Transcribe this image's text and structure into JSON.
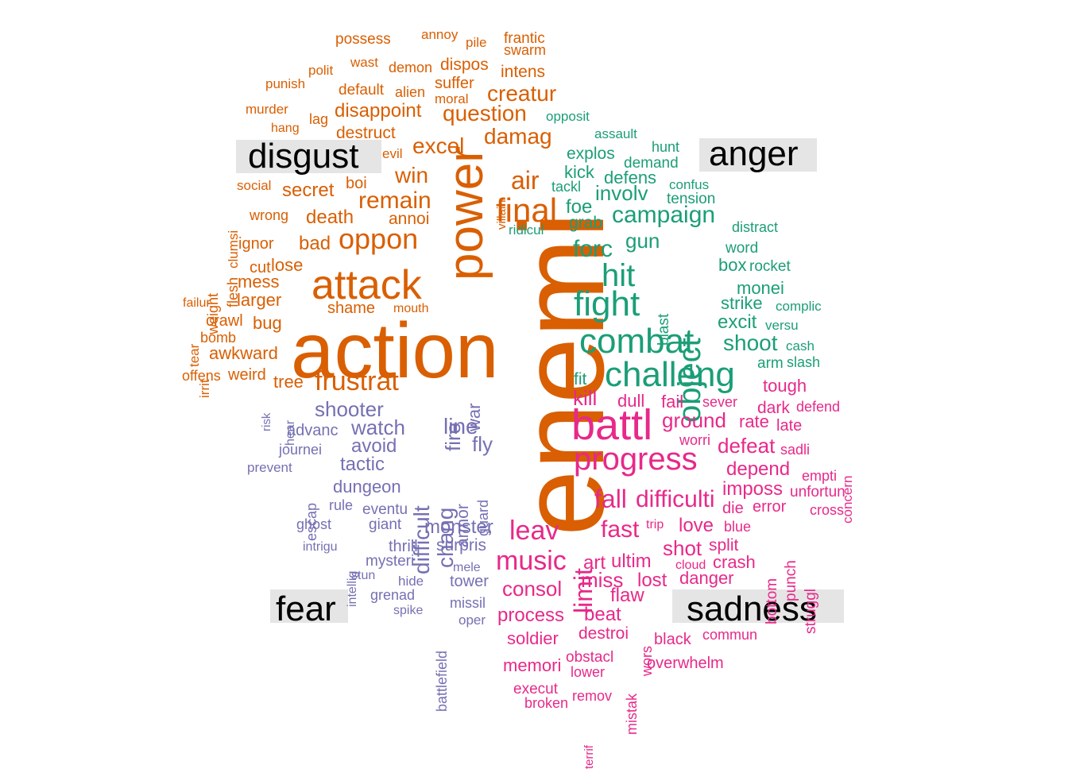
{
  "colors": {
    "disgust": "#d95f02",
    "anger": "#1b9e77",
    "fear": "#7570b3",
    "sadness": "#e7298a"
  },
  "categories": {
    "disgust": "disgust",
    "anger": "anger",
    "fear": "fear",
    "sadness": "sadness"
  },
  "words": [
    {
      "t": "enemi",
      "c": "disgust"
    },
    {
      "t": "action",
      "c": "disgust"
    },
    {
      "t": "power",
      "c": "disgust"
    },
    {
      "t": "attack",
      "c": "disgust"
    },
    {
      "t": "oppon",
      "c": "disgust"
    },
    {
      "t": "final",
      "c": "disgust"
    },
    {
      "t": "frustrat",
      "c": "disgust"
    },
    {
      "t": "remain",
      "c": "disgust"
    },
    {
      "t": "air",
      "c": "disgust"
    },
    {
      "t": "win",
      "c": "disgust"
    },
    {
      "t": "excel",
      "c": "disgust"
    },
    {
      "t": "damag",
      "c": "disgust"
    },
    {
      "t": "creatur",
      "c": "disgust"
    },
    {
      "t": "question",
      "c": "disgust"
    },
    {
      "t": "disappoint",
      "c": "disgust"
    },
    {
      "t": "secret",
      "c": "disgust"
    },
    {
      "t": "death",
      "c": "disgust"
    },
    {
      "t": "bad",
      "c": "disgust"
    },
    {
      "t": "lose",
      "c": "disgust"
    },
    {
      "t": "cut",
      "c": "disgust"
    },
    {
      "t": "mess",
      "c": "disgust"
    },
    {
      "t": "larger",
      "c": "disgust"
    },
    {
      "t": "bug",
      "c": "disgust"
    },
    {
      "t": "shame",
      "c": "disgust"
    },
    {
      "t": "mouth",
      "c": "disgust"
    },
    {
      "t": "crawl",
      "c": "disgust"
    },
    {
      "t": "awkward",
      "c": "disgust"
    },
    {
      "t": "weird",
      "c": "disgust"
    },
    {
      "t": "tree",
      "c": "disgust"
    },
    {
      "t": "offens",
      "c": "disgust"
    },
    {
      "t": "bomb",
      "c": "disgust"
    },
    {
      "t": "failur",
      "c": "disgust"
    },
    {
      "t": "ignor",
      "c": "disgust"
    },
    {
      "t": "wrong",
      "c": "disgust"
    },
    {
      "t": "social",
      "c": "disgust"
    },
    {
      "t": "annoi",
      "c": "disgust"
    },
    {
      "t": "boi",
      "c": "disgust"
    },
    {
      "t": "evil",
      "c": "disgust"
    },
    {
      "t": "destruct",
      "c": "disgust"
    },
    {
      "t": "hang",
      "c": "disgust"
    },
    {
      "t": "murder",
      "c": "disgust"
    },
    {
      "t": "lag",
      "c": "disgust"
    },
    {
      "t": "punish",
      "c": "disgust"
    },
    {
      "t": "polit",
      "c": "disgust"
    },
    {
      "t": "default",
      "c": "disgust"
    },
    {
      "t": "wast",
      "c": "disgust"
    },
    {
      "t": "alien",
      "c": "disgust"
    },
    {
      "t": "moral",
      "c": "disgust"
    },
    {
      "t": "suffer",
      "c": "disgust"
    },
    {
      "t": "demon",
      "c": "disgust"
    },
    {
      "t": "dispos",
      "c": "disgust"
    },
    {
      "t": "intens",
      "c": "disgust"
    },
    {
      "t": "possess",
      "c": "disgust"
    },
    {
      "t": "annoy",
      "c": "disgust"
    },
    {
      "t": "pile",
      "c": "disgust"
    },
    {
      "t": "frantic",
      "c": "disgust"
    },
    {
      "t": "swarm",
      "c": "disgust"
    },
    {
      "t": "weight",
      "c": "disgust"
    },
    {
      "t": "flesh",
      "c": "disgust"
    },
    {
      "t": "clumsi",
      "c": "disgust"
    },
    {
      "t": "tear",
      "c": "disgust"
    },
    {
      "t": "irrit",
      "c": "disgust"
    },
    {
      "t": "villain",
      "c": "disgust"
    },
    {
      "t": "fight",
      "c": "anger"
    },
    {
      "t": "combat",
      "c": "anger"
    },
    {
      "t": "challeng",
      "c": "anger"
    },
    {
      "t": "hit",
      "c": "anger"
    },
    {
      "t": "forc",
      "c": "anger"
    },
    {
      "t": "campaign",
      "c": "anger"
    },
    {
      "t": "involv",
      "c": "anger"
    },
    {
      "t": "gun",
      "c": "anger"
    },
    {
      "t": "object",
      "c": "anger"
    },
    {
      "t": "shoot",
      "c": "anger"
    },
    {
      "t": "excit",
      "c": "anger"
    },
    {
      "t": "strike",
      "c": "anger"
    },
    {
      "t": "monei",
      "c": "anger"
    },
    {
      "t": "box",
      "c": "anger"
    },
    {
      "t": "rocket",
      "c": "anger"
    },
    {
      "t": "word",
      "c": "anger"
    },
    {
      "t": "distract",
      "c": "anger"
    },
    {
      "t": "tension",
      "c": "anger"
    },
    {
      "t": "confus",
      "c": "anger"
    },
    {
      "t": "demand",
      "c": "anger"
    },
    {
      "t": "hunt",
      "c": "anger"
    },
    {
      "t": "defens",
      "c": "anger"
    },
    {
      "t": "kick",
      "c": "anger"
    },
    {
      "t": "tackl",
      "c": "anger"
    },
    {
      "t": "explos",
      "c": "anger"
    },
    {
      "t": "assault",
      "c": "anger"
    },
    {
      "t": "opposit",
      "c": "anger"
    },
    {
      "t": "foe",
      "c": "anger"
    },
    {
      "t": "grab",
      "c": "anger"
    },
    {
      "t": "ridicul",
      "c": "anger"
    },
    {
      "t": "complic",
      "c": "anger"
    },
    {
      "t": "versu",
      "c": "anger"
    },
    {
      "t": "cash",
      "c": "anger"
    },
    {
      "t": "arm",
      "c": "anger"
    },
    {
      "t": "slash",
      "c": "anger"
    },
    {
      "t": "fit",
      "c": "anger"
    },
    {
      "t": "blast",
      "c": "anger"
    },
    {
      "t": "battl",
      "c": "sadness"
    },
    {
      "t": "progress",
      "c": "sadness"
    },
    {
      "t": "kill",
      "c": "sadness"
    },
    {
      "t": "limit",
      "c": "sadness"
    },
    {
      "t": "fall",
      "c": "sadness"
    },
    {
      "t": "difficulti",
      "c": "sadness"
    },
    {
      "t": "fast",
      "c": "sadness"
    },
    {
      "t": "leav",
      "c": "sadness"
    },
    {
      "t": "music",
      "c": "sadness"
    },
    {
      "t": "consol",
      "c": "sadness"
    },
    {
      "t": "process",
      "c": "sadness"
    },
    {
      "t": "soldier",
      "c": "sadness"
    },
    {
      "t": "memori",
      "c": "sadness"
    },
    {
      "t": "ground",
      "c": "sadness"
    },
    {
      "t": "defeat",
      "c": "sadness"
    },
    {
      "t": "depend",
      "c": "sadness"
    },
    {
      "t": "imposs",
      "c": "sadness"
    },
    {
      "t": "die",
      "c": "sadness"
    },
    {
      "t": "error",
      "c": "sadness"
    },
    {
      "t": "love",
      "c": "sadness"
    },
    {
      "t": "shot",
      "c": "sadness"
    },
    {
      "t": "split",
      "c": "sadness"
    },
    {
      "t": "crash",
      "c": "sadness"
    },
    {
      "t": "danger",
      "c": "sadness"
    },
    {
      "t": "lost",
      "c": "sadness"
    },
    {
      "t": "miss",
      "c": "sadness"
    },
    {
      "t": "ultim",
      "c": "sadness"
    },
    {
      "t": "art",
      "c": "sadness"
    },
    {
      "t": "flaw",
      "c": "sadness"
    },
    {
      "t": "beat",
      "c": "sadness"
    },
    {
      "t": "destroi",
      "c": "sadness"
    },
    {
      "t": "black",
      "c": "sadness"
    },
    {
      "t": "commun",
      "c": "sadness"
    },
    {
      "t": "overwhelm",
      "c": "sadness"
    },
    {
      "t": "obstacl",
      "c": "sadness"
    },
    {
      "t": "lower",
      "c": "sadness"
    },
    {
      "t": "execut",
      "c": "sadness"
    },
    {
      "t": "broken",
      "c": "sadness"
    },
    {
      "t": "remov",
      "c": "sadness"
    },
    {
      "t": "dull",
      "c": "sadness"
    },
    {
      "t": "fail",
      "c": "sadness"
    },
    {
      "t": "sever",
      "c": "sadness"
    },
    {
      "t": "worri",
      "c": "sadness"
    },
    {
      "t": "rate",
      "c": "sadness"
    },
    {
      "t": "dark",
      "c": "sadness"
    },
    {
      "t": "defend",
      "c": "sadness"
    },
    {
      "t": "late",
      "c": "sadness"
    },
    {
      "t": "sadli",
      "c": "sadness"
    },
    {
      "t": "tough",
      "c": "sadness"
    },
    {
      "t": "empti",
      "c": "sadness"
    },
    {
      "t": "unfortun",
      "c": "sadness"
    },
    {
      "t": "cross",
      "c": "sadness"
    },
    {
      "t": "blue",
      "c": "sadness"
    },
    {
      "t": "trip",
      "c": "sadness"
    },
    {
      "t": "cloud",
      "c": "sadness"
    },
    {
      "t": "concern",
      "c": "sadness"
    },
    {
      "t": "bottom",
      "c": "sadness"
    },
    {
      "t": "punch",
      "c": "sadness"
    },
    {
      "t": "struggl",
      "c": "sadness"
    },
    {
      "t": "wors",
      "c": "sadness"
    },
    {
      "t": "mistak",
      "c": "sadness"
    },
    {
      "t": "terrif",
      "c": "sadness"
    },
    {
      "t": "shooter",
      "c": "fear"
    },
    {
      "t": "watch",
      "c": "fear"
    },
    {
      "t": "avoid",
      "c": "fear"
    },
    {
      "t": "tactic",
      "c": "fear"
    },
    {
      "t": "dungeon",
      "c": "fear"
    },
    {
      "t": "advanc",
      "c": "fear"
    },
    {
      "t": "journei",
      "c": "fear"
    },
    {
      "t": "prevent",
      "c": "fear"
    },
    {
      "t": "eventu",
      "c": "fear"
    },
    {
      "t": "giant",
      "c": "fear"
    },
    {
      "t": "rule",
      "c": "fear"
    },
    {
      "t": "ghost",
      "c": "fear"
    },
    {
      "t": "thrill",
      "c": "fear"
    },
    {
      "t": "mysteri",
      "c": "fear"
    },
    {
      "t": "intrigu",
      "c": "fear"
    },
    {
      "t": "stun",
      "c": "fear"
    },
    {
      "t": "hide",
      "c": "fear"
    },
    {
      "t": "grenad",
      "c": "fear"
    },
    {
      "t": "spike",
      "c": "fear"
    },
    {
      "t": "monster",
      "c": "fear"
    },
    {
      "t": "surpris",
      "c": "fear"
    },
    {
      "t": "mele",
      "c": "fear"
    },
    {
      "t": "tower",
      "c": "fear"
    },
    {
      "t": "missil",
      "c": "fear"
    },
    {
      "t": "oper",
      "c": "fear"
    },
    {
      "t": "line",
      "c": "fear"
    },
    {
      "t": "fly",
      "c": "fear"
    },
    {
      "t": "fire",
      "c": "fear"
    },
    {
      "t": "war",
      "c": "fear"
    },
    {
      "t": "difficult",
      "c": "fear"
    },
    {
      "t": "chang",
      "c": "fear"
    },
    {
      "t": "armor",
      "c": "fear"
    },
    {
      "t": "guard",
      "c": "fear"
    },
    {
      "t": "battlefield",
      "c": "fear"
    },
    {
      "t": "escap",
      "c": "fear"
    },
    {
      "t": "intellig",
      "c": "fear"
    },
    {
      "t": "risk",
      "c": "fear"
    },
    {
      "t": "hear",
      "c": "fear"
    }
  ]
}
